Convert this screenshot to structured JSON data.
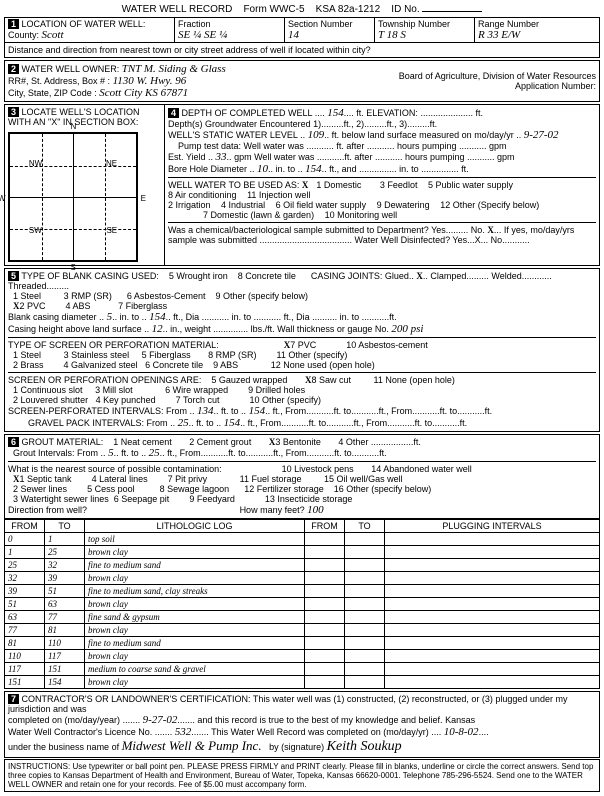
{
  "header": {
    "title": "WATER WELL RECORD",
    "form": "Form WWC-5",
    "ksa": "KSA 82a-1212",
    "id_label": "ID No."
  },
  "section1": {
    "num": "1",
    "title": "LOCATION OF WATER WELL:",
    "county_label": "County:",
    "county": "Scott",
    "fraction_label": "Fraction",
    "fraction": "SE ¼  SE ¼",
    "section_label": "Section Number",
    "section": "14",
    "township_label": "Township Number",
    "township": "T   18   S",
    "range_label": "Range Number",
    "range": "R   33   E/W",
    "distance": "Distance and direction from nearest town or city street address of well if located within city?"
  },
  "section2": {
    "num": "2",
    "title": "WATER WELL OWNER:",
    "owner": "TNT M. Siding & Glass",
    "addr_label": "RR#, St. Address, Box #",
    "addr": "1130 W. Hwy. 96",
    "city_label": "City, State, ZIP Code",
    "city": "Scott City   KS   67871",
    "board": "Board of Agriculture, Division of Water Resources",
    "app_label": "Application Number:"
  },
  "section3": {
    "num": "3",
    "title": "LOCATE WELL'S LOCATION WITH AN \"X\" IN SECTION BOX:",
    "n": "N",
    "s": "S",
    "e": "E",
    "w": "W",
    "nw": "NW",
    "ne": "NE",
    "sw": "SW",
    "se": "SE",
    "mile": "1 Mile"
  },
  "section4": {
    "num": "4",
    "title": "DEPTH OF COMPLETED WELL",
    "depth": "154",
    "elev_label": "ft. ELEVATION:",
    "gw_label": "Depth(s) Groundwater Encountered",
    "gw1": "1)",
    "gw2": "2)",
    "gw3": "3)",
    "static_label": "WELL'S STATIC WATER LEVEL",
    "static": "109",
    "static_suffix": "ft. below land surface measured on mo/day/yr",
    "static_date": "9-27-02",
    "pump_label": "Pump test data:  Well water was",
    "pump_suffix": "ft. after ........... hours pumping ........... gpm",
    "yield_label": "Est. Yield",
    "yield": "33",
    "yield_unit": "gpm   Well water was",
    "bore_label": "Bore Hole Diameter",
    "bore_dia": "10",
    "bore_in": "in. to",
    "bore_to": "154",
    "bore_and": "ft., and ............... in. to ............... ft.",
    "use_label": "WELL WATER TO BE USED AS:",
    "uses": [
      "1 Domestic",
      "2 Irrigation",
      "3 Feedlot",
      "4 Industrial",
      "5 Public water supply",
      "6 Oil field water supply",
      "7 Domestic (lawn & garden)",
      "8 Air conditioning",
      "9 Dewatering",
      "10 Monitoring well",
      "11 Injection well",
      "12 Other (Specify below)"
    ],
    "use_x": "X",
    "chem_label": "Was a chemical/bacteriological sample submitted to Department? Yes......... No.",
    "chem_no": "X",
    "chem_tail": "If yes, mo/day/yrs sample was submitted ..................................... Water Well Disinfected? Yes...X... No..........."
  },
  "section5": {
    "num": "5",
    "title": "TYPE OF BLANK CASING USED:",
    "casing_types": [
      "1 Steel",
      "2 PVC",
      "3 RMP (SR)",
      "4 ABS",
      "5 Wrought iron",
      "6 Asbestos-Cement",
      "7 Fiberglass",
      "8 Concrete tile",
      "9 Other (specify below)"
    ],
    "pvc_x": "X",
    "joints_label": "CASING JOINTS: Glued..",
    "joints_x": "X",
    "joints_tail": "Clamped......... Welded............ Threaded.........",
    "blank_label": "Blank casing diameter",
    "blank_dia": "5",
    "blank_in": "in. to",
    "blank_to": "154",
    "blank_tail": "ft., Dia ........... in. to ........... ft., Dia .......... in. to ...........ft.",
    "height_label": "Casing height above land surface",
    "height": "12",
    "height_tail": "in., weight .............. lbs./ft. Wall thickness or gauge No.",
    "gauge": "200 psi",
    "screen_type_label": "TYPE OF SCREEN OR PERFORATION MATERIAL:",
    "screen_types": [
      "1 Steel",
      "2 Brass",
      "3 Stainless steel",
      "4 Galvanized steel",
      "5 Fiberglass",
      "6 Concrete tile",
      "7 PVC",
      "8 RMP (SR)",
      "9 ABS",
      "10 Asbestos-cement",
      "11 Other (specify)",
      "12 None used (open hole)"
    ],
    "screen_x": "X",
    "open_label": "SCREEN OR PERFORATION OPENINGS ARE:",
    "open_types": [
      "1 Continuous slot",
      "2 Louvered shutter",
      "3 Mill slot",
      "4 Key punched",
      "5 Gauzed wrapped",
      "6 Wire wrapped",
      "7 Torch cut",
      "8 Saw cut",
      "9 Drilled holes",
      "10 Other (specify)",
      "11 None (open hole)"
    ],
    "saw_x": "X",
    "perf_label": "SCREEN-PERFORATED INTERVALS: From",
    "perf_from": "134",
    "perf_to": "154",
    "perf_tail": "ft., From...........ft. to...........ft., From...........ft. to...........ft.",
    "gravel_label": "GRAVEL PACK INTERVALS: From",
    "gravel_from": "25",
    "gravel_to": "154",
    "gravel_tail": "ft., From...........ft. to...........ft., From...........ft. to...........ft."
  },
  "section6": {
    "num": "6",
    "title": "GROUT MATERIAL:",
    "grout_types": [
      "1 Neat cement",
      "2 Cement grout",
      "3 Bentonite",
      "4 Other"
    ],
    "grout_x": "X",
    "grout_label": "Grout Intervals: From",
    "grout_from": "5",
    "grout_to": "25",
    "grout_tail": "ft., From...........ft. to...........ft., From...........ft. to...........ft.",
    "contam_label": "What is the nearest source of possible contamination:",
    "contam_x": "X",
    "contam_types": [
      "1 Septic tank",
      "2 Sewer lines",
      "3 Watertight sewer lines",
      "4 Lateral lines",
      "5 Cess pool",
      "6 Seepage pit",
      "7 Pit privy",
      "8 Sewage lagoon",
      "9 Feedyard",
      "10 Livestock pens",
      "11 Fuel storage",
      "12 Fertilizer storage",
      "13 Insecticide storage",
      "14 Abandoned water well",
      "15 Oil well/Gas well",
      "16 Other (specify below)"
    ],
    "dir_label": "Direction from well?",
    "feet_label": "How many feet?",
    "feet": "100"
  },
  "log": {
    "headers": [
      "FROM",
      "TO",
      "LITHOLOGIC LOG",
      "FROM",
      "TO",
      "PLUGGING INTERVALS"
    ],
    "rows": [
      [
        "0",
        "1",
        "top soil",
        "",
        "",
        ""
      ],
      [
        "1",
        "25",
        "brown clay",
        "",
        "",
        ""
      ],
      [
        "25",
        "32",
        "fine to medium sand",
        "",
        "",
        ""
      ],
      [
        "32",
        "39",
        "brown clay",
        "",
        "",
        ""
      ],
      [
        "39",
        "51",
        "fine to medium sand, clay streaks",
        "",
        "",
        ""
      ],
      [
        "51",
        "63",
        "brown clay",
        "",
        "",
        ""
      ],
      [
        "63",
        "77",
        "fine sand & gypsum",
        "",
        "",
        ""
      ],
      [
        "77",
        "81",
        "brown clay",
        "",
        "",
        ""
      ],
      [
        "81",
        "110",
        "fine to medium sand",
        "",
        "",
        ""
      ],
      [
        "110",
        "117",
        "brown clay",
        "",
        "",
        ""
      ],
      [
        "117",
        "151",
        "medium to coarse sand & gravel",
        "",
        "",
        ""
      ],
      [
        "151",
        "154",
        "brown clay",
        "",
        "",
        ""
      ]
    ]
  },
  "section7": {
    "num": "7",
    "cert1": "CONTRACTOR'S OR LANDOWNER'S CERTIFICATION: This water well was (1) constructed, (2) reconstructed, or (3) plugged under my jurisdiction and was",
    "cert_x": "X",
    "completed_label": "completed on (mo/day/year)",
    "completed": "9-27-02",
    "cert2": "and this record is true to the best of my knowledge and belief. Kansas",
    "lic_label": "Water Well Contractor's Licence No.",
    "lic": "532",
    "lic_tail": "This Water Well Record was completed on (mo/day/yr)",
    "rec_date": "10-8-02",
    "biz_label": "under the business name of",
    "biz": "Midwest Well & Pump Inc.",
    "sig_label": "by (signature)",
    "sig": "Keith Soukup"
  },
  "footer": "INSTRUCTIONS: Use typewriter or ball point pen. PLEASE PRESS FIRMLY and PRINT clearly. Please fill in blanks, underline or circle the correct answers. Send top three copies to Kansas Department of Health and Environment, Bureau of Water, Topeka, Kansas 66620-0001. Telephone 785-296-5524. Send one to the WATER WELL OWNER and retain one for your records. Fee of $5.00 must accompany form."
}
